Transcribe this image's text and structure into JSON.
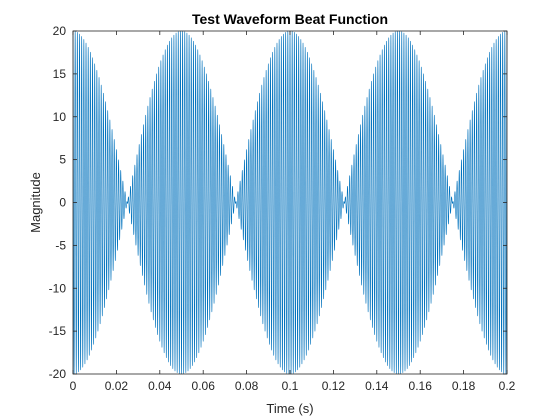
{
  "chart_data": {
    "type": "line",
    "title": "Test Waveform Beat Function",
    "xlabel": "Time (s)",
    "ylabel": "Magnitude",
    "xlim": [
      0,
      0.2
    ],
    "ylim": [
      -20,
      20
    ],
    "xticks": [
      0,
      0.02,
      0.04,
      0.06,
      0.08,
      0.1,
      0.12,
      0.14,
      0.16,
      0.18,
      0.2
    ],
    "xtick_labels": [
      "0",
      "0.02",
      "0.04",
      "0.06",
      "0.08",
      "0.1",
      "0.12",
      "0.14",
      "0.16",
      "0.18",
      "0.2"
    ],
    "yticks": [
      -20,
      -15,
      -10,
      -5,
      0,
      5,
      10,
      15,
      20
    ],
    "ytick_labels": [
      "-20",
      "-15",
      "-10",
      "-5",
      "0",
      "5",
      "10",
      "15",
      "20"
    ],
    "grid": false,
    "series": [
      {
        "color": "#0072bd",
        "function": "beat",
        "amplitude": 20,
        "envelope_frequency_hz": 10,
        "carrier_frequency_hz": 1000,
        "x_start": 0,
        "x_end": 0.2
      }
    ]
  }
}
